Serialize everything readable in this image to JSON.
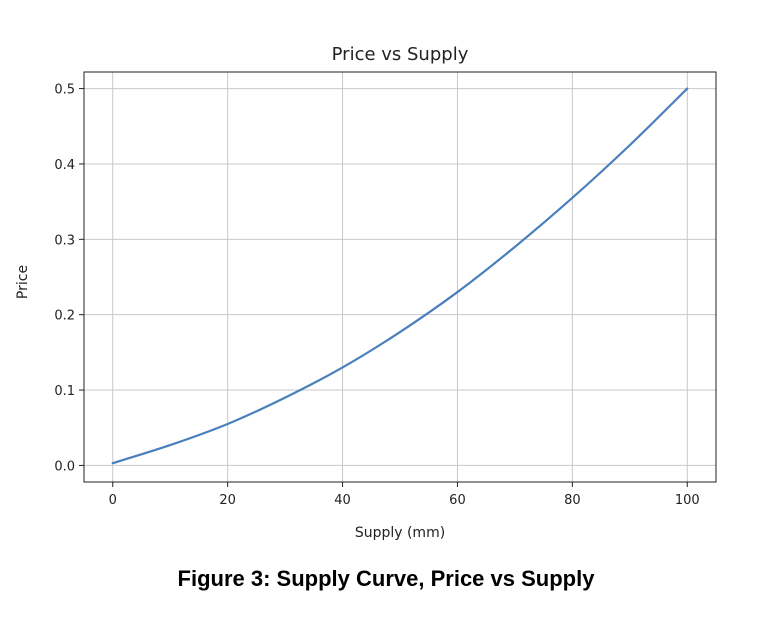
{
  "chart_data": {
    "type": "line",
    "title": "Price vs Supply",
    "xlabel": "Supply (mm)",
    "ylabel": "Price",
    "xlim": [
      -5,
      105
    ],
    "ylim": [
      -0.022,
      0.522
    ],
    "xticks": [
      0,
      20,
      40,
      60,
      80,
      100
    ],
    "yticks": [
      0.0,
      0.1,
      0.2,
      0.3,
      0.4,
      0.5
    ],
    "ytick_labels": [
      "0.0",
      "0.1",
      "0.2",
      "0.3",
      "0.4",
      "0.5"
    ],
    "grid": true,
    "line_color": "#4a7fbd",
    "series": [
      {
        "x": [
          0,
          10,
          20,
          30,
          40,
          50,
          60,
          70,
          80,
          90,
          100
        ],
        "values": [
          0.003,
          0.027,
          0.055,
          0.09,
          0.13,
          0.177,
          0.23,
          0.29,
          0.355,
          0.425,
          0.5
        ]
      }
    ]
  },
  "caption": "Figure 3: Supply Curve, Price vs Supply"
}
